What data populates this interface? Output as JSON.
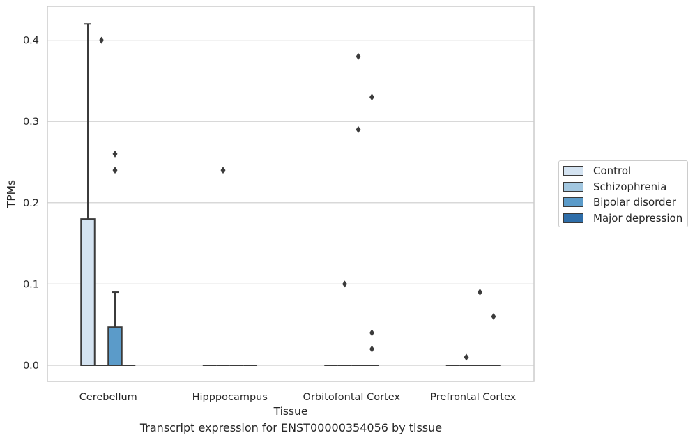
{
  "caption": "Transcript expression for ENST00000354056 by tissue",
  "chart_data": {
    "type": "box",
    "xlabel": "Tissue",
    "ylabel": "TPMs",
    "ylim": [
      -0.02,
      0.43
    ],
    "yticks": [
      0.0,
      0.1,
      0.2,
      0.3,
      0.4
    ],
    "ytick_labels": [
      "0.0",
      "0.1",
      "0.2",
      "0.3",
      "0.4"
    ],
    "grid": "horizontal",
    "legend_position": "right",
    "categories": [
      "Cerebellum",
      "Hipppocampus",
      "Orbitofontal Cortex",
      "Prefrontal Cortex"
    ],
    "series": [
      {
        "name": "Control",
        "color": "#d4e3f1",
        "boxes": [
          {
            "category": "Cerebellum",
            "q1": 0.0,
            "median": 0.0,
            "q3": 0.18,
            "whisker_low": 0.0,
            "whisker_high": 0.42,
            "outliers": []
          },
          {
            "category": "Hipppocampus",
            "q1": 0.0,
            "median": 0.0,
            "q3": 0.0,
            "whisker_low": 0.0,
            "whisker_high": 0.0,
            "outliers": []
          },
          {
            "category": "Orbitofontal Cortex",
            "q1": 0.0,
            "median": 0.0,
            "q3": 0.0,
            "whisker_low": 0.0,
            "whisker_high": 0.0,
            "outliers": []
          },
          {
            "category": "Prefrontal Cortex",
            "q1": 0.0,
            "median": 0.0,
            "q3": 0.0,
            "whisker_low": 0.0,
            "whisker_high": 0.0,
            "outliers": []
          }
        ]
      },
      {
        "name": "Schizophrenia",
        "color": "#a2c7e0",
        "boxes": [
          {
            "category": "Cerebellum",
            "q1": 0.0,
            "median": 0.0,
            "q3": 0.0,
            "whisker_low": 0.0,
            "whisker_high": 0.0,
            "outliers": [
              0.4
            ]
          },
          {
            "category": "Hipppocampus",
            "q1": 0.0,
            "median": 0.0,
            "q3": 0.0,
            "whisker_low": 0.0,
            "whisker_high": 0.0,
            "outliers": [
              0.24
            ]
          },
          {
            "category": "Orbitofontal Cortex",
            "q1": 0.0,
            "median": 0.0,
            "q3": 0.0,
            "whisker_low": 0.0,
            "whisker_high": 0.0,
            "outliers": [
              0.1
            ]
          },
          {
            "category": "Prefrontal Cortex",
            "q1": 0.0,
            "median": 0.0,
            "q3": 0.0,
            "whisker_low": 0.0,
            "whisker_high": 0.0,
            "outliers": [
              0.01
            ]
          }
        ]
      },
      {
        "name": "Bipolar disorder",
        "color": "#5b9bc9",
        "boxes": [
          {
            "category": "Cerebellum",
            "q1": 0.0,
            "median": 0.0,
            "q3": 0.047,
            "whisker_low": 0.0,
            "whisker_high": 0.09,
            "outliers": [
              0.26,
              0.24
            ]
          },
          {
            "category": "Hipppocampus",
            "q1": 0.0,
            "median": 0.0,
            "q3": 0.0,
            "whisker_low": 0.0,
            "whisker_high": 0.0,
            "outliers": []
          },
          {
            "category": "Orbitofontal Cortex",
            "q1": 0.0,
            "median": 0.0,
            "q3": 0.0,
            "whisker_low": 0.0,
            "whisker_high": 0.0,
            "outliers": [
              0.38,
              0.29
            ]
          },
          {
            "category": "Prefrontal Cortex",
            "q1": 0.0,
            "median": 0.0,
            "q3": 0.0,
            "whisker_low": 0.0,
            "whisker_high": 0.0,
            "outliers": [
              0.09
            ]
          }
        ]
      },
      {
        "name": "Major depression",
        "color": "#2f6ea9",
        "boxes": [
          {
            "category": "Cerebellum",
            "q1": 0.0,
            "median": 0.0,
            "q3": 0.0,
            "whisker_low": 0.0,
            "whisker_high": 0.0,
            "outliers": []
          },
          {
            "category": "Hipppocampus",
            "q1": 0.0,
            "median": 0.0,
            "q3": 0.0,
            "whisker_low": 0.0,
            "whisker_high": 0.0,
            "outliers": []
          },
          {
            "category": "Orbitofontal Cortex",
            "q1": 0.0,
            "median": 0.0,
            "q3": 0.0,
            "whisker_low": 0.0,
            "whisker_high": 0.0,
            "outliers": [
              0.33,
              0.04,
              0.02
            ]
          },
          {
            "category": "Prefrontal Cortex",
            "q1": 0.0,
            "median": 0.0,
            "q3": 0.0,
            "whisker_low": 0.0,
            "whisker_high": 0.0,
            "outliers": [
              0.06
            ]
          }
        ]
      }
    ]
  }
}
